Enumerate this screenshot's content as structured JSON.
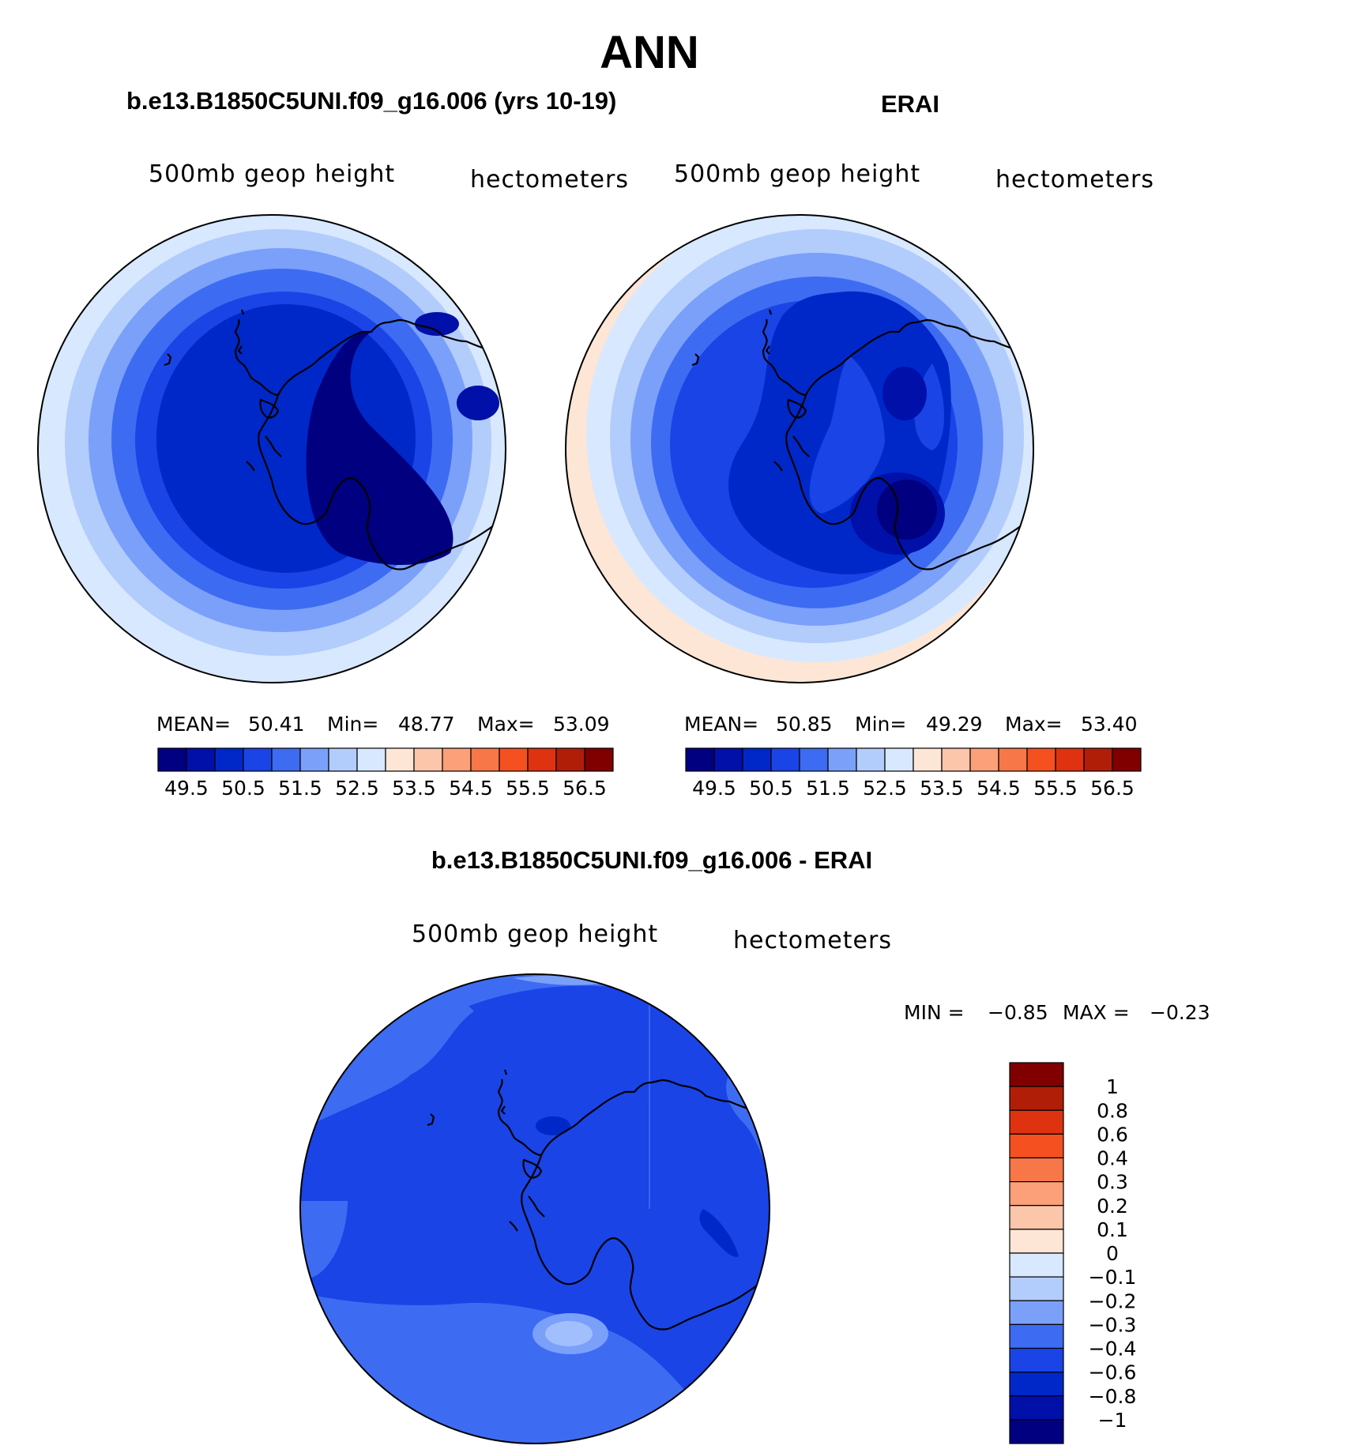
{
  "page_title": "ANN",
  "chart_data": [
    {
      "type": "heatmap",
      "projection": "south-polar-stereographic",
      "title": "b.e13.B1850C5UNI.f09_g16.006 (yrs 10-19)",
      "left_label": "500mb geop height",
      "right_label": "hectometers",
      "stats": {
        "mean_label": "MEAN=",
        "mean": "50.41",
        "min_label": "Min=",
        "min": "48.77",
        "max_label": "Max=",
        "max": "53.09"
      },
      "levels": [
        49,
        49.5,
        50,
        50.5,
        51,
        51.5,
        52,
        52.5,
        53,
        53.5,
        54,
        54.5,
        55,
        55.5,
        56,
        56.5
      ],
      "colorbar_tick_labels": [
        "49.5",
        "50.5",
        "51.5",
        "52.5",
        "53.5",
        "54.5",
        "55.5",
        "56.5"
      ],
      "colors": [
        "#000080",
        "#0010a8",
        "#0028c8",
        "#1a44e6",
        "#3d6cf2",
        "#7aa0fa",
        "#b2ccfc",
        "#d8e8fe",
        "#fde6d6",
        "#fcc6aa",
        "#fca07a",
        "#f87748",
        "#f45020",
        "#de3210",
        "#b01e08",
        "#800000"
      ],
      "colorbar_orientation": "horizontal"
    },
    {
      "type": "heatmap",
      "projection": "south-polar-stereographic",
      "title": "ERAI",
      "left_label": "500mb geop height",
      "right_label": "hectometers",
      "stats": {
        "mean_label": "MEAN=",
        "mean": "50.85",
        "min_label": "Min=",
        "min": "49.29",
        "max_label": "Max=",
        "max": "53.40"
      },
      "levels": [
        49,
        49.5,
        50,
        50.5,
        51,
        51.5,
        52,
        52.5,
        53,
        53.5,
        54,
        54.5,
        55,
        55.5,
        56,
        56.5
      ],
      "colorbar_tick_labels": [
        "49.5",
        "50.5",
        "51.5",
        "52.5",
        "53.5",
        "54.5",
        "55.5",
        "56.5"
      ],
      "colors": [
        "#000080",
        "#0010a8",
        "#0028c8",
        "#1a44e6",
        "#3d6cf2",
        "#7aa0fa",
        "#b2ccfc",
        "#d8e8fe",
        "#fde6d6",
        "#fcc6aa",
        "#fca07a",
        "#f87748",
        "#f45020",
        "#de3210",
        "#b01e08",
        "#800000"
      ],
      "colorbar_orientation": "horizontal"
    },
    {
      "type": "heatmap",
      "projection": "south-polar-stereographic",
      "title": "b.e13.B1850C5UNI.f09_g16.006 - ERAI",
      "left_label": "500mb geop height",
      "right_label": "hectometers",
      "stats": {
        "min_label": "MIN =",
        "min": "−0.85",
        "max_label": "MAX =",
        "max": "−0.23"
      },
      "levels": [
        -1,
        -0.8,
        -0.6,
        -0.4,
        -0.3,
        -0.2,
        -0.1,
        0,
        0.1,
        0.2,
        0.3,
        0.4,
        0.6,
        0.8,
        1
      ],
      "colorbar_tick_labels": [
        "1",
        "0.8",
        "0.6",
        "0.4",
        "0.3",
        "0.2",
        "0.1",
        "0",
        "−0.1",
        "−0.2",
        "−0.3",
        "−0.4",
        "−0.6",
        "−0.8",
        "−1"
      ],
      "colors": [
        "#800000",
        "#b01e08",
        "#de3210",
        "#f45020",
        "#f87748",
        "#fca07a",
        "#fcc6aa",
        "#fde6d6",
        "#d8e8fe",
        "#b2ccfc",
        "#7aa0fa",
        "#3d6cf2",
        "#1a44e6",
        "#0028c8",
        "#0010a8",
        "#000080"
      ],
      "colorbar_orientation": "vertical"
    }
  ]
}
